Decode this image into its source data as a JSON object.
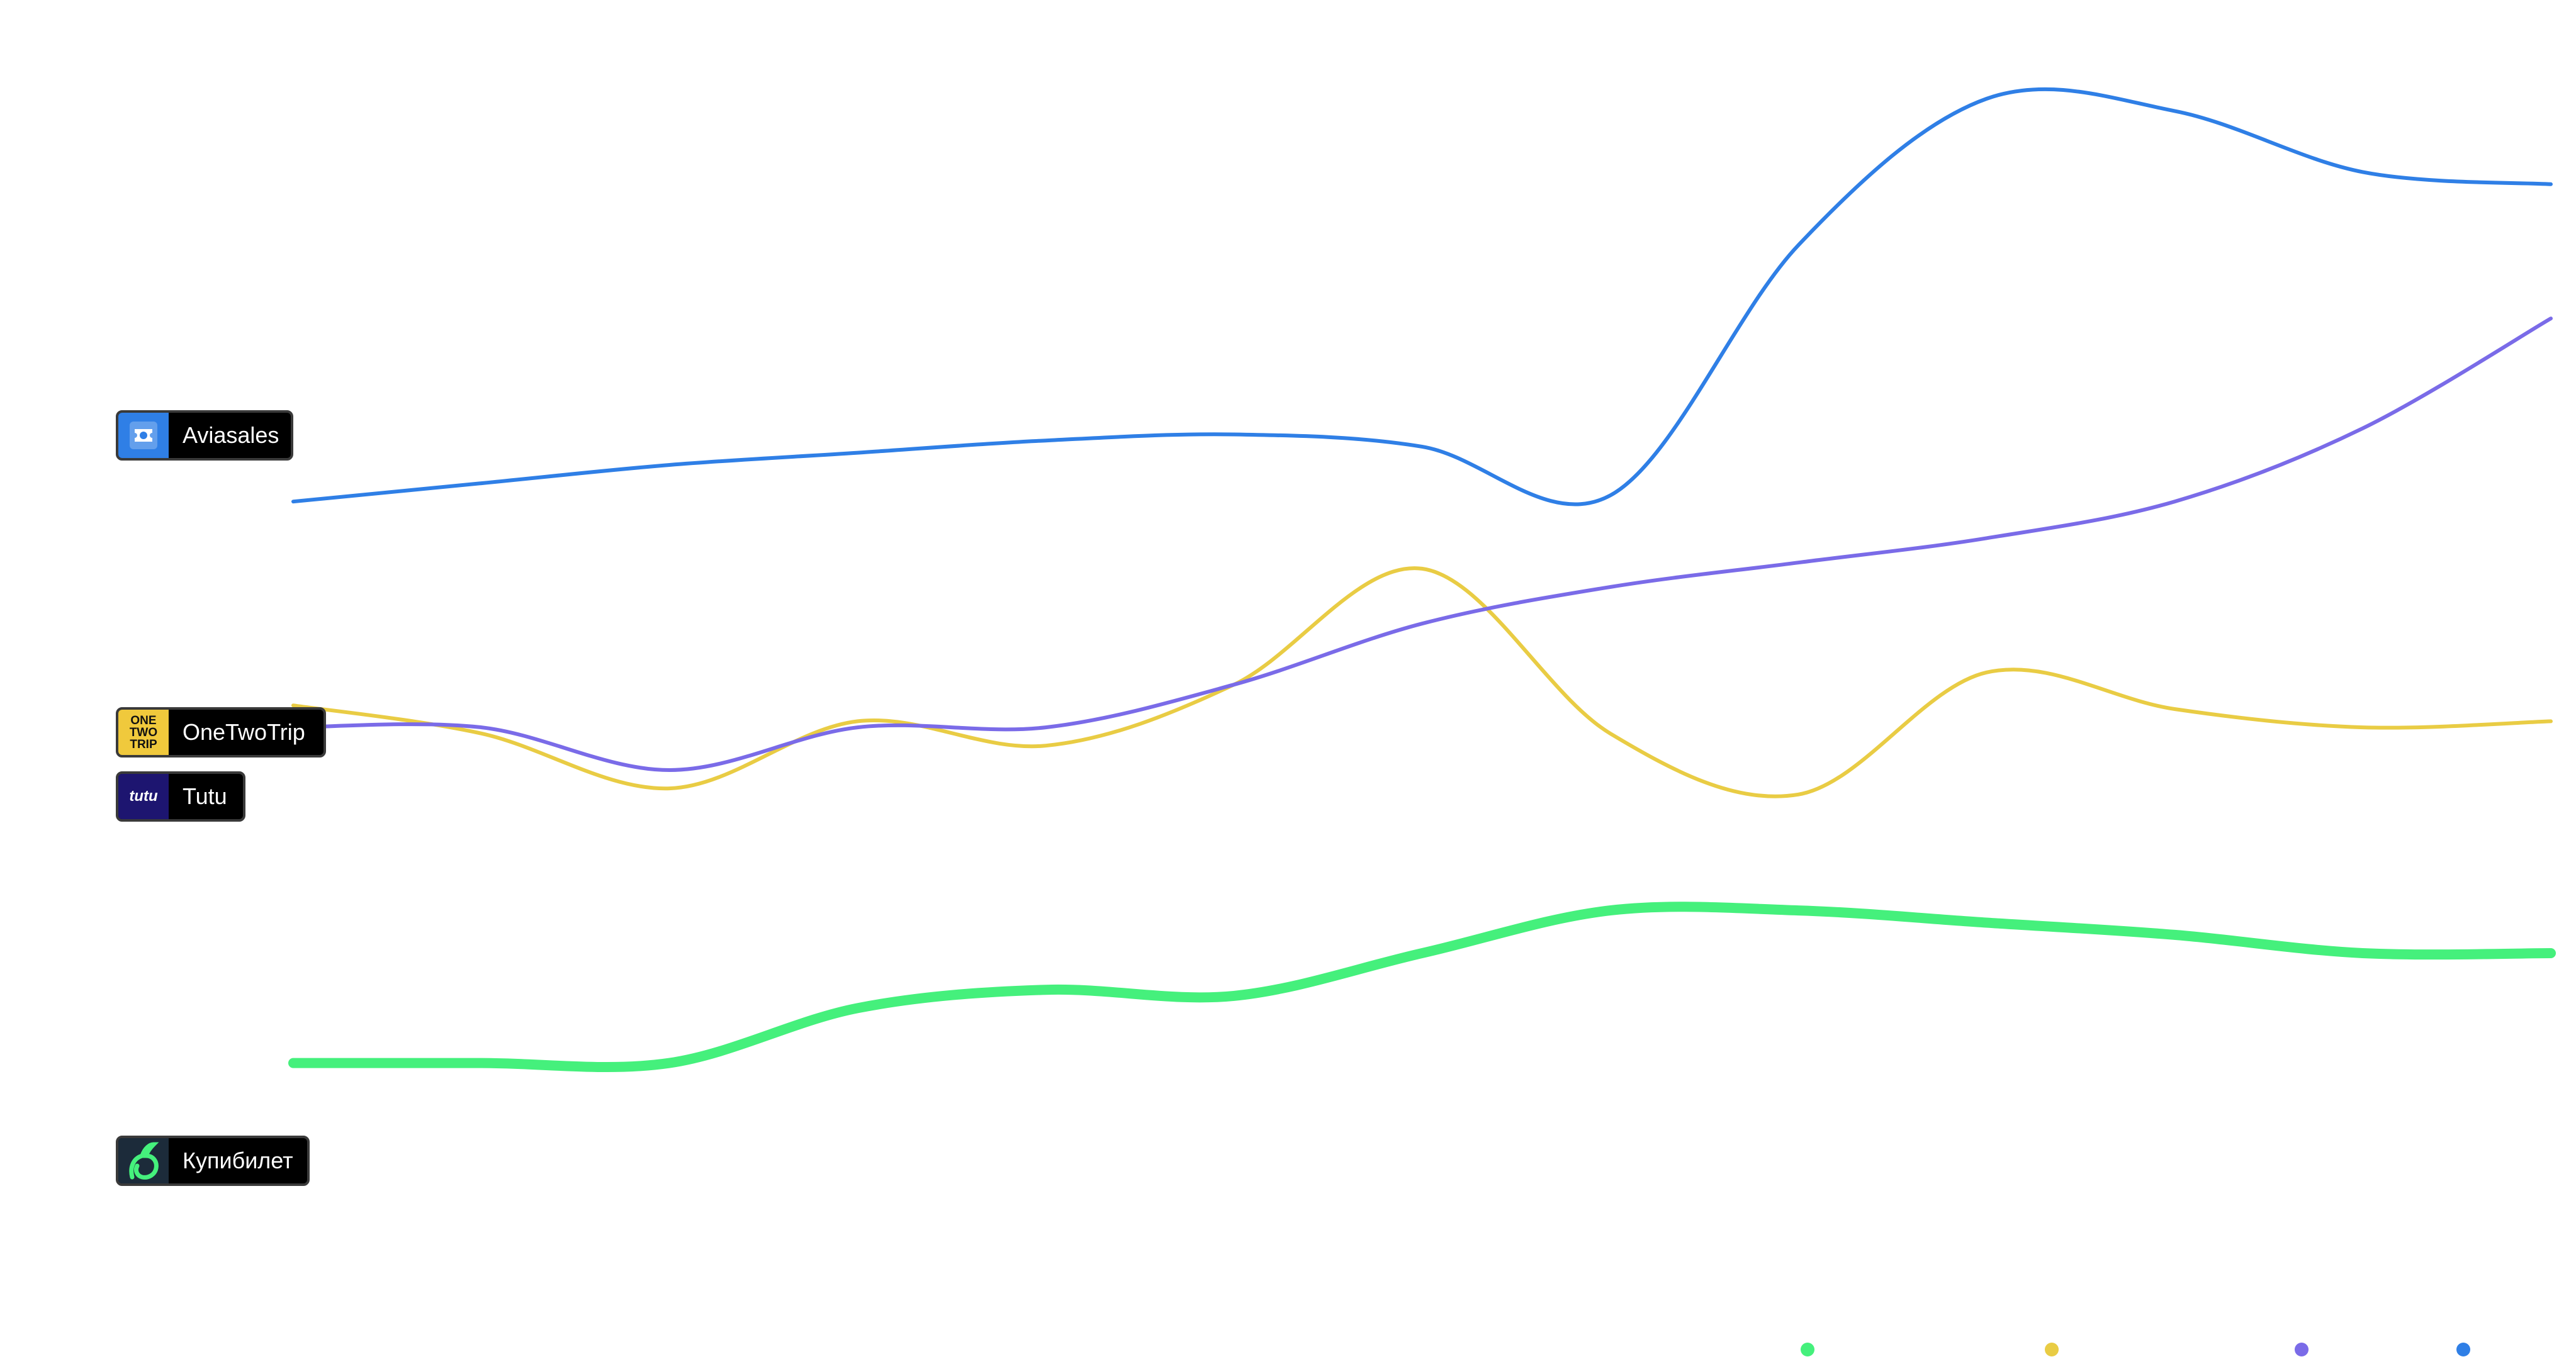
{
  "chart_data": {
    "type": "line",
    "x": [
      0,
      1,
      2,
      3,
      4,
      5,
      6,
      7,
      8,
      9,
      10,
      11,
      12
    ],
    "ylim": [
      0,
      100
    ],
    "grid": false,
    "legend": "bottom-right",
    "series": [
      {
        "name": "Aviasales",
        "color": "#2f7fe6",
        "stroke": 6,
        "values": [
          62,
          63.5,
          65,
          66,
          67,
          67.5,
          66.5,
          62.5,
          83,
          95,
          94,
          89,
          88
        ]
      },
      {
        "name": "Tutu",
        "color": "#7a6be8",
        "stroke": 6,
        "values": [
          43.5,
          43.5,
          40,
          43.5,
          43.5,
          47,
          52,
          55,
          57,
          59,
          62,
          68,
          77
        ]
      },
      {
        "name": "OneTwoTrip",
        "color": "#e9cc44",
        "stroke": 6,
        "values": [
          45.3,
          43,
          38.5,
          44,
          42,
          47,
          56.5,
          43,
          38,
          48,
          45,
          43.5,
          44
        ]
      },
      {
        "name": "Купибилет",
        "color": "#45f07c",
        "stroke": 16,
        "values": [
          16,
          16,
          16,
          20.5,
          22,
          21.5,
          25,
          28.5,
          28.5,
          27.5,
          26.5,
          25,
          25
        ]
      }
    ]
  },
  "labels": {
    "aviasales": "Aviasales",
    "onetwotrip": "OneTwoTrip",
    "onetwotrip_logo": [
      "ONE",
      "TWO",
      "TRIP"
    ],
    "tutu": "Tutu",
    "tutu_logo": "tutu",
    "kupibilet": "Купибилет"
  },
  "legend": {
    "dots": [
      {
        "series": "Купибилет",
        "color": "#45f07c"
      },
      {
        "series": "OneTwoTrip",
        "color": "#e9cc44"
      },
      {
        "series": "Tutu",
        "color": "#7a6be8"
      },
      {
        "series": "Aviasales",
        "color": "#2f7fe6"
      }
    ]
  },
  "icons": {
    "aviasales": "aviasales-logo-icon",
    "onetwotrip": "onetwotrip-logo-icon",
    "tutu": "tutu-logo-icon",
    "kupibilet": "kupibilet-logo-icon"
  }
}
